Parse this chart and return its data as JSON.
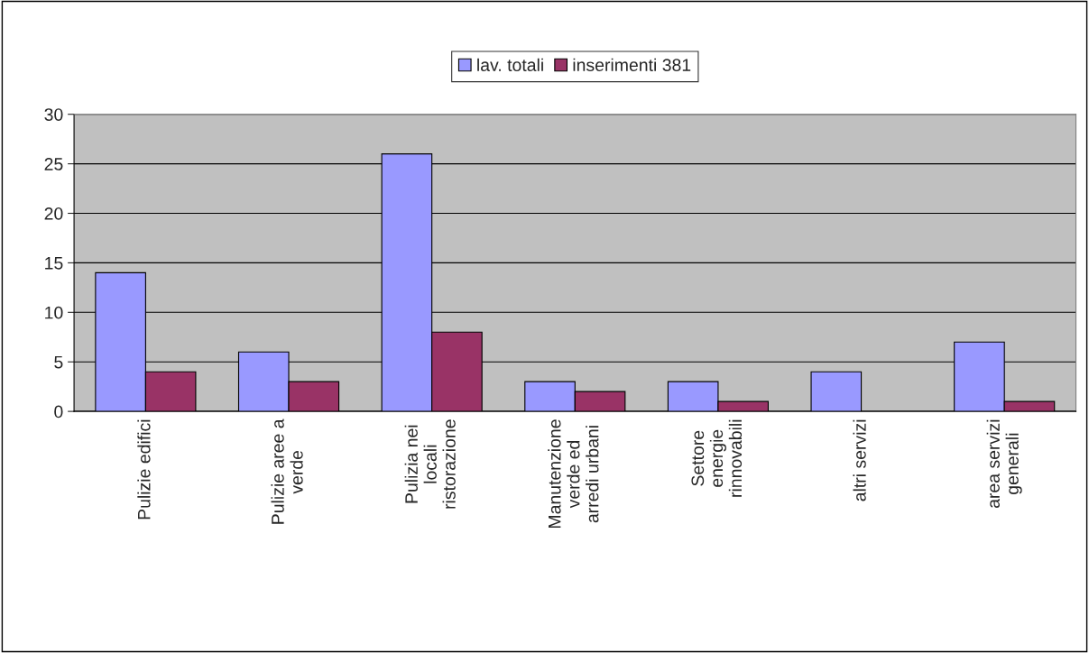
{
  "chart_data": {
    "type": "bar",
    "categories": [
      "Pulizie edifici",
      "Pulizie aree a\nverde",
      "Pulizia nei\nlocali\nristorazione",
      "Manutenzione\nverde ed\narredi urbani",
      "Settore\nenergie\nrinnovabili",
      "altri servizi",
      "area servizi\ngenerali"
    ],
    "series": [
      {
        "name": "lav. totali",
        "color": "#9999ff",
        "values": [
          14,
          6,
          26,
          3,
          3,
          4,
          7
        ]
      },
      {
        "name": "inserimenti 381",
        "color": "#993366",
        "values": [
          4,
          3,
          8,
          2,
          1,
          null,
          1
        ]
      }
    ],
    "ylim": [
      0,
      30
    ],
    "yticks": [
      0,
      5,
      10,
      15,
      20,
      25,
      30
    ],
    "grid": "y",
    "legend": "top"
  }
}
